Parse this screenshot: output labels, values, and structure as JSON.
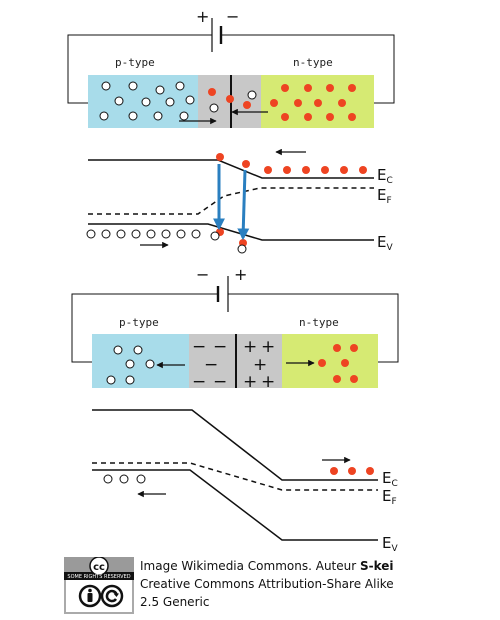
{
  "forward_bias": {
    "polarity_plus": "+",
    "polarity_minus": "−",
    "p_label": "p-type",
    "n_label": "n-type",
    "band_labels": {
      "ec_main": "E",
      "ec_sub": "C",
      "ef_main": "E",
      "ef_sub": "F",
      "ev_main": "E",
      "ev_sub": "V"
    }
  },
  "reverse_bias": {
    "polarity_plus": "+",
    "polarity_minus": "−",
    "p_label": "p-type",
    "n_label": "n-type",
    "depletion_minus": "−",
    "depletion_plus": "+",
    "band_labels": {
      "ec_main": "E",
      "ec_sub": "C",
      "ef_main": "E",
      "ef_sub": "F",
      "ev_main": "E",
      "ev_sub": "V"
    }
  },
  "credit": {
    "line1_prefix": "Image Wikimedia Commons. Auteur ",
    "author": "S-kei",
    "line2": "Creative Commons Attribution-Share Alike",
    "line3": "2.5 Generic",
    "badge_top": "cc",
    "badge_text": "SOME RIGHTS RESERVED"
  },
  "colors": {
    "p_region": "#a8dcea",
    "n_region": "#d6ea73",
    "depletion": "#c8c8c8",
    "electron": "#ee4422",
    "hole_fill": "#ffffff",
    "recombination_arrow": "#2a7fc0",
    "line": "#111111"
  }
}
